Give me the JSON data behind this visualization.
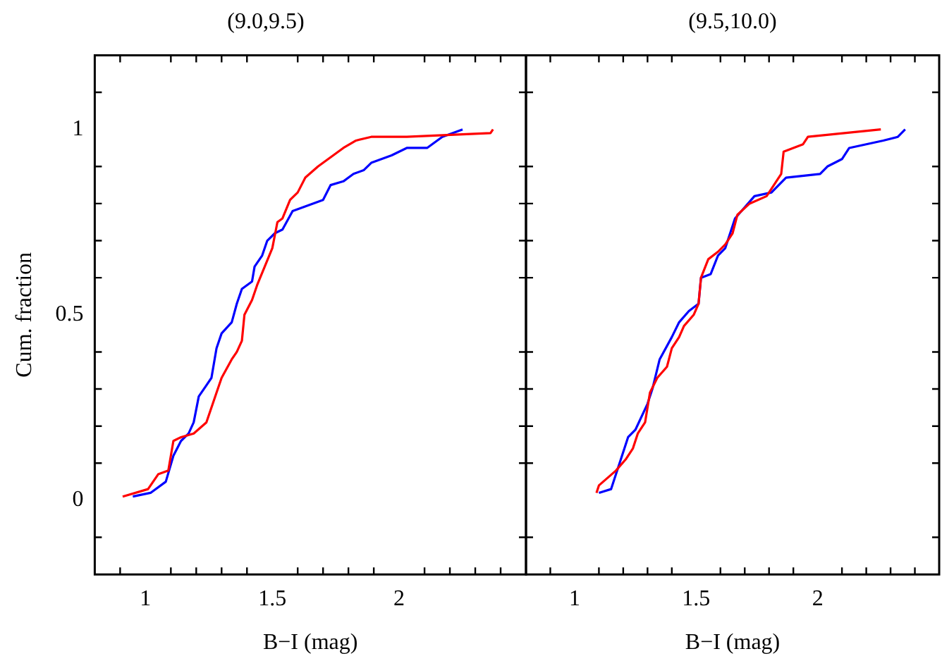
{
  "chart_data": [
    {
      "type": "line",
      "title": "(9.0,9.5)",
      "xlabel": "B−I (mag)",
      "ylabel": "Cum. fraction",
      "marker": "none",
      "xlim": [
        0.8,
        2.5
      ],
      "ylim": [
        -0.2,
        1.2
      ],
      "xticks": [
        {
          "value": 0.9,
          "label": null
        },
        1,
        {
          "value": 1.1,
          "label": null
        },
        {
          "value": 1.2,
          "label": null
        },
        {
          "value": 1.3,
          "label": null
        },
        {
          "value": 1.4,
          "label": null
        },
        1.5,
        {
          "value": 1.6,
          "label": null
        },
        {
          "value": 1.7,
          "label": null
        },
        {
          "value": 1.8,
          "label": null
        },
        {
          "value": 1.9,
          "label": null
        },
        2,
        {
          "value": 2.1,
          "label": null
        },
        {
          "value": 2.2,
          "label": null
        },
        {
          "value": 2.3,
          "label": null
        },
        {
          "value": 2.4,
          "label": null
        }
      ],
      "yticks": [
        {
          "value": -0.1,
          "label": null
        },
        0,
        {
          "value": 0.1,
          "label": null
        },
        {
          "value": 0.2,
          "label": null
        },
        {
          "value": 0.3,
          "label": null
        },
        {
          "value": 0.4,
          "label": null
        },
        0.5,
        {
          "value": 0.6,
          "label": null
        },
        {
          "value": 0.7,
          "label": null
        },
        {
          "value": 0.8,
          "label": null
        },
        {
          "value": 0.9,
          "label": null
        },
        1,
        {
          "value": 1.1,
          "label": null
        }
      ],
      "series": [
        {
          "color": "#ff0000",
          "x": [
            0.91,
            1.01,
            1.05,
            1.09,
            1.11,
            1.14,
            1.19,
            1.24,
            1.28,
            1.3,
            1.34,
            1.36,
            1.38,
            1.39,
            1.42,
            1.44,
            1.47,
            1.5,
            1.52,
            1.54,
            1.57,
            1.6,
            1.63,
            1.68,
            1.74,
            1.78,
            1.83,
            1.89,
            2.03,
            2.36,
            2.37
          ],
          "values": [
            0.01,
            0.03,
            0.07,
            0.08,
            0.16,
            0.17,
            0.18,
            0.21,
            0.29,
            0.33,
            0.38,
            0.4,
            0.43,
            0.5,
            0.54,
            0.58,
            0.63,
            0.68,
            0.75,
            0.76,
            0.81,
            0.83,
            0.87,
            0.9,
            0.93,
            0.95,
            0.97,
            0.98,
            0.98,
            0.99,
            1.0
          ]
        },
        {
          "color": "#0000ff",
          "x": [
            0.95,
            1.02,
            1.08,
            1.11,
            1.14,
            1.17,
            1.19,
            1.21,
            1.24,
            1.26,
            1.28,
            1.3,
            1.34,
            1.36,
            1.38,
            1.42,
            1.43,
            1.46,
            1.48,
            1.51,
            1.54,
            1.58,
            1.62,
            1.7,
            1.73,
            1.78,
            1.82,
            1.86,
            1.89,
            1.97,
            2.03,
            2.11,
            2.17,
            2.25
          ],
          "values": [
            0.01,
            0.02,
            0.05,
            0.12,
            0.16,
            0.18,
            0.21,
            0.28,
            0.31,
            0.33,
            0.41,
            0.45,
            0.48,
            0.53,
            0.57,
            0.59,
            0.63,
            0.66,
            0.7,
            0.72,
            0.73,
            0.78,
            0.79,
            0.81,
            0.85,
            0.86,
            0.88,
            0.89,
            0.91,
            0.93,
            0.95,
            0.95,
            0.98,
            1.0
          ]
        }
      ]
    },
    {
      "type": "line",
      "title": "(9.5,10.0)",
      "xlabel": "B−I (mag)",
      "marker": "none",
      "tick_labels": "x",
      "xlim": [
        0.8,
        2.5
      ],
      "ylim": [
        -0.2,
        1.2
      ],
      "xticks": [
        {
          "value": 0.9,
          "label": null
        },
        1,
        {
          "value": 1.1,
          "label": null
        },
        {
          "value": 1.2,
          "label": null
        },
        {
          "value": 1.3,
          "label": null
        },
        {
          "value": 1.4,
          "label": null
        },
        1.5,
        {
          "value": 1.6,
          "label": null
        },
        {
          "value": 1.7,
          "label": null
        },
        {
          "value": 1.8,
          "label": null
        },
        {
          "value": 1.9,
          "label": null
        },
        2,
        {
          "value": 2.1,
          "label": null
        },
        {
          "value": 2.2,
          "label": null
        },
        {
          "value": 2.3,
          "label": null
        },
        {
          "value": 2.4,
          "label": null
        }
      ],
      "yticks": [
        {
          "value": -0.1,
          "label": null
        },
        0,
        {
          "value": 0.1,
          "label": null
        },
        {
          "value": 0.2,
          "label": null
        },
        {
          "value": 0.3,
          "label": null
        },
        {
          "value": 0.4,
          "label": null
        },
        0.5,
        {
          "value": 0.6,
          "label": null
        },
        {
          "value": 0.7,
          "label": null
        },
        {
          "value": 0.8,
          "label": null
        },
        {
          "value": 0.9,
          "label": null
        },
        1,
        {
          "value": 1.1,
          "label": null
        }
      ],
      "series": [
        {
          "color": "#ff0000",
          "x": [
            1.09,
            1.1,
            1.17,
            1.21,
            1.24,
            1.26,
            1.29,
            1.31,
            1.34,
            1.38,
            1.4,
            1.43,
            1.45,
            1.49,
            1.51,
            1.52,
            1.55,
            1.59,
            1.62,
            1.65,
            1.67,
            1.72,
            1.79,
            1.82,
            1.85,
            1.86,
            1.94,
            1.96,
            2.26
          ],
          "values": [
            0.02,
            0.04,
            0.08,
            0.11,
            0.14,
            0.18,
            0.21,
            0.29,
            0.33,
            0.36,
            0.41,
            0.44,
            0.47,
            0.5,
            0.53,
            0.6,
            0.65,
            0.67,
            0.69,
            0.72,
            0.77,
            0.8,
            0.82,
            0.85,
            0.88,
            0.94,
            0.96,
            0.98,
            1.0
          ]
        },
        {
          "color": "#0000ff",
          "x": [
            1.1,
            1.15,
            1.22,
            1.25,
            1.3,
            1.32,
            1.35,
            1.4,
            1.43,
            1.47,
            1.51,
            1.52,
            1.56,
            1.59,
            1.62,
            1.66,
            1.74,
            1.81,
            1.87,
            2.01,
            2.04,
            2.1,
            2.13,
            2.27,
            2.33,
            2.36
          ],
          "values": [
            0.02,
            0.03,
            0.17,
            0.19,
            0.26,
            0.3,
            0.38,
            0.44,
            0.48,
            0.51,
            0.53,
            0.6,
            0.61,
            0.66,
            0.68,
            0.76,
            0.82,
            0.83,
            0.87,
            0.88,
            0.9,
            0.92,
            0.95,
            0.97,
            0.98,
            1.0
          ]
        }
      ]
    }
  ]
}
